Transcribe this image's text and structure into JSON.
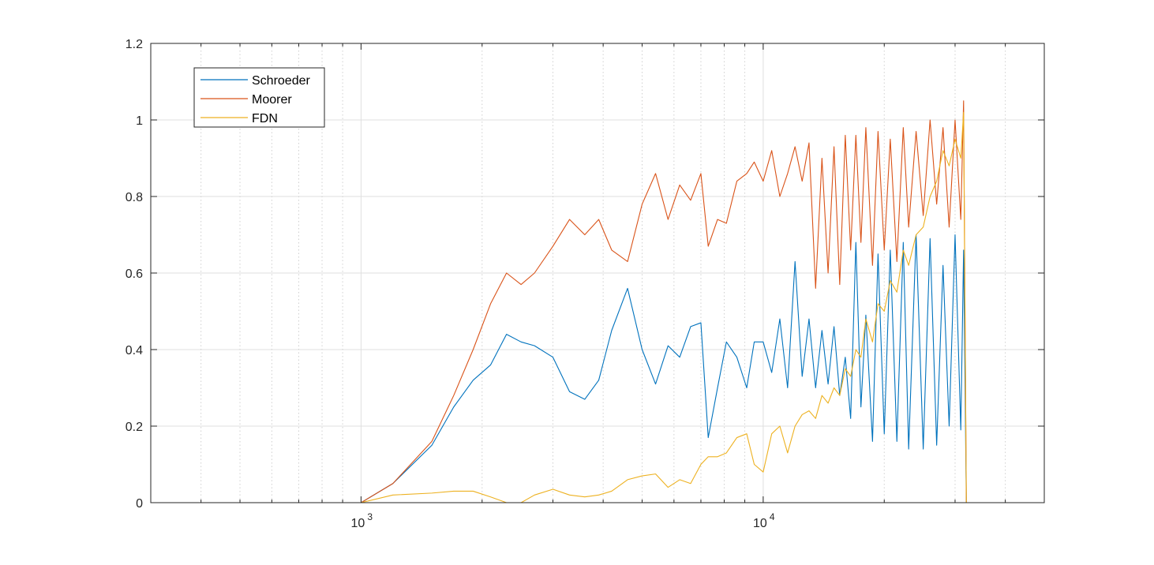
{
  "chart_data": {
    "type": "line",
    "title": "",
    "xlabel": "",
    "ylabel": "",
    "xscale": "log",
    "xlim": [
      300,
      50000
    ],
    "ylim": [
      0,
      1.2
    ],
    "yticks": [
      0,
      0.2,
      0.4,
      0.6,
      0.8,
      1,
      1.2
    ],
    "ytick_labels": [
      "0",
      "0.2",
      "0.4",
      "0.6",
      "0.8",
      "1",
      "1.2"
    ],
    "xticks": [
      1000,
      10000
    ],
    "xtick_labels": [
      {
        "base": "10",
        "exp": "3"
      },
      {
        "base": "10",
        "exp": "4"
      }
    ],
    "grid": true,
    "legend_position": "top-left",
    "series": [
      {
        "name": "Schroeder",
        "color": "#0072BD",
        "x": [
          300,
          1000,
          1200,
          1500,
          1700,
          1900,
          2100,
          2300,
          2500,
          2700,
          3000,
          3300,
          3600,
          3900,
          4200,
          4600,
          5000,
          5400,
          5800,
          6200,
          6600,
          7000,
          7300,
          7700,
          8100,
          8600,
          9100,
          9500,
          10000,
          10500,
          11000,
          11500,
          12000,
          12500,
          13000,
          13500,
          14000,
          14500,
          15000,
          15500,
          16000,
          16500,
          17000,
          17500,
          18000,
          18700,
          19300,
          20000,
          20700,
          21500,
          22300,
          23000,
          24000,
          25000,
          26000,
          27000,
          28000,
          29000,
          30000,
          31000,
          31500,
          32000,
          32500
        ],
        "y": [
          0,
          0,
          0.05,
          0.15,
          0.25,
          0.32,
          0.36,
          0.44,
          0.42,
          0.41,
          0.38,
          0.29,
          0.27,
          0.32,
          0.45,
          0.56,
          0.4,
          0.31,
          0.41,
          0.38,
          0.46,
          0.47,
          0.17,
          0.3,
          0.42,
          0.38,
          0.3,
          0.42,
          0.42,
          0.34,
          0.48,
          0.3,
          0.63,
          0.33,
          0.48,
          0.3,
          0.45,
          0.31,
          0.46,
          0.28,
          0.38,
          0.22,
          0.68,
          0.25,
          0.49,
          0.16,
          0.65,
          0.18,
          0.66,
          0.16,
          0.68,
          0.14,
          0.7,
          0.14,
          0.69,
          0.15,
          0.62,
          0.2,
          0.7,
          0.19,
          0.66,
          0.0,
          0.0
        ]
      },
      {
        "name": "Moorer",
        "color": "#D95319",
        "x": [
          300,
          1000,
          1200,
          1500,
          1700,
          1900,
          2100,
          2300,
          2500,
          2700,
          3000,
          3300,
          3600,
          3900,
          4200,
          4600,
          5000,
          5400,
          5800,
          6200,
          6600,
          7000,
          7300,
          7700,
          8100,
          8600,
          9100,
          9500,
          10000,
          10500,
          11000,
          11500,
          12000,
          12500,
          13000,
          13500,
          14000,
          14500,
          15000,
          15500,
          16000,
          16500,
          17000,
          17500,
          18000,
          18700,
          19300,
          20000,
          20700,
          21500,
          22300,
          23000,
          24000,
          25000,
          26000,
          27000,
          28000,
          29000,
          30000,
          31000,
          31500,
          32000,
          32500
        ],
        "y": [
          0,
          0,
          0.05,
          0.16,
          0.28,
          0.4,
          0.52,
          0.6,
          0.57,
          0.6,
          0.67,
          0.74,
          0.7,
          0.74,
          0.66,
          0.63,
          0.78,
          0.86,
          0.74,
          0.83,
          0.79,
          0.86,
          0.67,
          0.74,
          0.73,
          0.84,
          0.86,
          0.89,
          0.84,
          0.92,
          0.8,
          0.86,
          0.93,
          0.84,
          0.94,
          0.56,
          0.9,
          0.6,
          0.93,
          0.57,
          0.96,
          0.66,
          0.96,
          0.68,
          0.98,
          0.62,
          0.97,
          0.66,
          0.95,
          0.63,
          0.98,
          0.72,
          0.97,
          0.75,
          1.0,
          0.78,
          0.98,
          0.72,
          1.0,
          0.74,
          1.05,
          0.0,
          0.0
        ]
      },
      {
        "name": "FDN",
        "color": "#EDB120",
        "x": [
          300,
          1000,
          1200,
          1500,
          1700,
          1900,
          2100,
          2300,
          2500,
          2700,
          3000,
          3300,
          3600,
          3900,
          4200,
          4600,
          5000,
          5400,
          5800,
          6200,
          6600,
          7000,
          7300,
          7700,
          8100,
          8600,
          9100,
          9500,
          10000,
          10500,
          11000,
          11500,
          12000,
          12500,
          13000,
          13500,
          14000,
          14500,
          15000,
          15500,
          16000,
          16500,
          17000,
          17500,
          18000,
          18700,
          19300,
          20000,
          20700,
          21500,
          22300,
          23000,
          24000,
          25000,
          26000,
          27000,
          28000,
          29000,
          30000,
          31000,
          31500,
          32000,
          32500
        ],
        "y": [
          0,
          0,
          0.02,
          0.025,
          0.03,
          0.03,
          0.015,
          0.0,
          0.0,
          0.02,
          0.035,
          0.02,
          0.015,
          0.02,
          0.03,
          0.06,
          0.07,
          0.075,
          0.04,
          0.06,
          0.05,
          0.1,
          0.12,
          0.12,
          0.13,
          0.17,
          0.18,
          0.1,
          0.08,
          0.18,
          0.2,
          0.13,
          0.2,
          0.23,
          0.24,
          0.22,
          0.28,
          0.26,
          0.3,
          0.28,
          0.35,
          0.33,
          0.4,
          0.38,
          0.48,
          0.42,
          0.52,
          0.5,
          0.58,
          0.55,
          0.66,
          0.62,
          0.7,
          0.72,
          0.8,
          0.84,
          0.92,
          0.88,
          0.95,
          0.9,
          1.02,
          0.0,
          0.0
        ]
      }
    ]
  }
}
